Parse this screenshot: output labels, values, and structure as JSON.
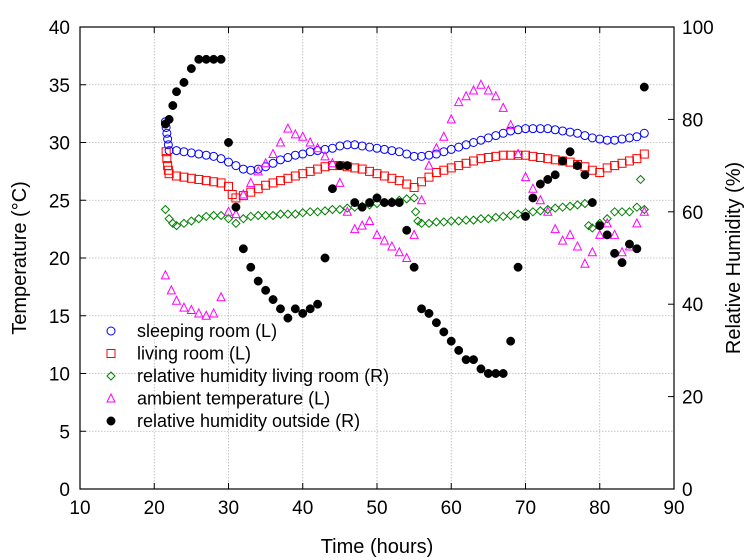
{
  "chart_data": {
    "type": "scatter",
    "xlabel": "Time (hours)",
    "ylabel_left": "Temperature (°C)",
    "ylabel_right": "Relative Humidity (%)",
    "xlim": [
      10,
      90
    ],
    "ylim_left": [
      0,
      40
    ],
    "ylim_right": [
      0,
      100
    ],
    "xticks": [
      10,
      20,
      30,
      40,
      50,
      60,
      70,
      80,
      90
    ],
    "yticks_left": [
      0,
      5,
      10,
      15,
      20,
      25,
      30,
      35,
      40
    ],
    "yticks_right": [
      0,
      20,
      40,
      60,
      80,
      100
    ],
    "grid": true,
    "legend_position": "bottom-left",
    "series": [
      {
        "name": "sleeping room (L)",
        "axis": "left",
        "marker": "circle-open",
        "color": "#0000ff",
        "x": [
          21.5,
          21.6,
          21.7,
          21.8,
          21.9,
          22,
          23,
          24,
          25,
          26,
          27,
          28,
          29,
          30,
          31,
          32,
          33,
          34,
          35,
          36,
          37,
          38,
          39,
          40,
          41,
          42,
          43,
          44,
          45,
          46,
          47,
          48,
          49,
          50,
          51,
          52,
          53,
          54,
          55,
          56,
          57,
          58,
          59,
          60,
          61,
          62,
          63,
          64,
          65,
          66,
          67,
          68,
          69,
          70,
          71,
          72,
          73,
          74,
          75,
          76,
          77,
          78,
          79,
          80,
          81,
          82,
          83,
          84,
          85,
          86
        ],
        "y": [
          31.8,
          31.3,
          30.8,
          30.3,
          29.8,
          29.3,
          29.3,
          29.2,
          29.1,
          29.0,
          28.9,
          28.8,
          28.6,
          28.3,
          28.0,
          27.7,
          27.6,
          27.7,
          27.9,
          28.2,
          28.5,
          28.7,
          28.9,
          29.0,
          29.2,
          29.3,
          29.4,
          29.5,
          29.7,
          29.8,
          29.8,
          29.7,
          29.6,
          29.5,
          29.4,
          29.3,
          29.2,
          29.0,
          28.8,
          28.8,
          28.9,
          29.0,
          29.2,
          29.4,
          29.6,
          29.8,
          30.0,
          30.2,
          30.4,
          30.6,
          30.8,
          31.0,
          31.1,
          31.2,
          31.2,
          31.2,
          31.2,
          31.1,
          31.0,
          30.9,
          30.8,
          30.6,
          30.4,
          30.3,
          30.2,
          30.2,
          30.3,
          30.4,
          30.5,
          30.8
        ]
      },
      {
        "name": "living room (L)",
        "axis": "left",
        "marker": "square-open",
        "color": "#ff0000",
        "x": [
          21.6,
          21.7,
          21.8,
          21.9,
          22,
          23,
          24,
          25,
          26,
          27,
          28,
          29,
          30,
          30.5,
          31,
          32,
          33,
          34,
          35,
          36,
          37,
          38,
          39,
          40,
          41,
          42,
          43,
          44,
          45,
          46,
          47,
          48,
          49,
          50,
          51,
          52,
          53,
          54,
          55,
          56,
          57,
          58,
          59,
          60,
          61,
          62,
          63,
          64,
          65,
          66,
          67,
          68,
          69,
          70,
          71,
          72,
          73,
          74,
          75,
          76,
          77,
          78,
          79,
          80,
          81,
          82,
          83,
          84,
          85,
          86
        ],
        "y": [
          29.2,
          28.6,
          28.0,
          27.6,
          27.3,
          27.1,
          27.0,
          26.9,
          26.8,
          26.7,
          26.6,
          26.5,
          26.2,
          25.5,
          25.2,
          25.4,
          25.7,
          26.0,
          26.3,
          26.5,
          26.7,
          26.9,
          27.1,
          27.3,
          27.5,
          27.7,
          27.9,
          28.0,
          28.0,
          27.9,
          27.8,
          27.7,
          27.5,
          27.3,
          27.1,
          26.9,
          26.7,
          26.4,
          26.1,
          26.6,
          27.0,
          27.4,
          27.6,
          27.8,
          28.0,
          28.2,
          28.4,
          28.6,
          28.7,
          28.8,
          28.9,
          28.9,
          28.9,
          28.9,
          28.8,
          28.7,
          28.6,
          28.5,
          28.4,
          28.3,
          28.1,
          27.9,
          27.6,
          27.4,
          27.8,
          28.0,
          28.2,
          28.4,
          28.6,
          29.0
        ]
      },
      {
        "name": "relative humidity living room (R)",
        "axis": "right",
        "marker": "diamond-open",
        "color": "#008000",
        "x": [
          21.5,
          22,
          22.5,
          23,
          24,
          25,
          26,
          27,
          28,
          29,
          30,
          31,
          32,
          33,
          34,
          35,
          36,
          37,
          38,
          39,
          40,
          41,
          42,
          43,
          44,
          45,
          46,
          47,
          48,
          49,
          50,
          51,
          52,
          53,
          54,
          55,
          55.2,
          55.5,
          56,
          57,
          58,
          59,
          60,
          61,
          62,
          63,
          64,
          65,
          66,
          67,
          68,
          69,
          70,
          71,
          72,
          73,
          74,
          75,
          76,
          77,
          78,
          78.5,
          79,
          80,
          81,
          82,
          83,
          84,
          85,
          85.5,
          86
        ],
        "y": [
          60.5,
          58.5,
          57.5,
          57,
          57.5,
          58,
          58.5,
          59,
          59.2,
          59.2,
          58.5,
          57.5,
          58.5,
          59,
          59.2,
          59.2,
          59.2,
          59.5,
          59.5,
          59.5,
          59.8,
          60,
          60,
          60.2,
          60.5,
          60.5,
          60.8,
          61,
          61.2,
          61.5,
          61.8,
          62,
          62.2,
          62.5,
          62.8,
          63,
          60,
          58,
          57.5,
          57.5,
          57.8,
          57.8,
          58,
          58,
          58.2,
          58.2,
          58.5,
          58.5,
          58.8,
          59,
          59.2,
          59.5,
          59.8,
          60,
          60.2,
          60.5,
          60.8,
          61,
          61.2,
          61.5,
          61.8,
          57,
          56.5,
          57.5,
          58.5,
          60,
          60,
          60,
          61,
          67,
          60.5
        ]
      },
      {
        "name": "ambient temperature (L)",
        "axis": "left",
        "marker": "triangle-open",
        "color": "#ff00ff",
        "x": [
          21.5,
          22.3,
          23,
          24,
          25,
          26,
          27,
          28,
          29,
          30,
          31,
          32,
          33,
          34,
          35,
          36,
          37,
          38,
          39,
          40,
          41,
          42,
          43,
          44,
          45,
          46,
          47,
          48,
          49,
          50,
          51,
          52,
          53,
          54,
          55,
          56,
          57,
          58,
          59,
          60,
          61,
          62,
          63,
          64,
          65,
          66,
          67,
          68,
          69,
          70,
          71,
          72,
          73,
          74,
          75,
          76,
          77,
          78,
          79,
          80,
          81,
          82,
          83,
          84,
          85,
          86
        ],
        "y": [
          18.5,
          17.2,
          16.3,
          15.7,
          15.5,
          15.2,
          15.0,
          15.2,
          16.6,
          24.0,
          23.8,
          25.5,
          26.5,
          27.5,
          28.2,
          29.0,
          30.0,
          31.2,
          30.7,
          30.5,
          30.0,
          29.5,
          28.8,
          28.2,
          26.5,
          24.0,
          22.5,
          22.8,
          23.2,
          22.0,
          21.5,
          21.0,
          20.5,
          20.0,
          22.0,
          25.0,
          28.0,
          29.5,
          30.5,
          32.0,
          33.5,
          34.0,
          34.5,
          35.0,
          34.5,
          34.0,
          33.0,
          31.5,
          29.0,
          27.0,
          26.0,
          25.0,
          24.0,
          22.5,
          21.5,
          22.0,
          21.0,
          19.5,
          20.5,
          22.0,
          23.0,
          22.0,
          20.5,
          21.0,
          23.0,
          24.0
        ]
      },
      {
        "name": "relative humidity outside (R)",
        "axis": "right",
        "marker": "circle-filled",
        "color": "#000000",
        "x": [
          21.5,
          22,
          22.5,
          23,
          24,
          25,
          26,
          27,
          28,
          29,
          30,
          31,
          32,
          33,
          34,
          35,
          36,
          37,
          38,
          39,
          40,
          41,
          42,
          43,
          44,
          45,
          46,
          47,
          48,
          49,
          50,
          51,
          52,
          53,
          54,
          55,
          56,
          57,
          58,
          59,
          60,
          61,
          62,
          63,
          64,
          65,
          66,
          67,
          68,
          69,
          70,
          71,
          72,
          73,
          74,
          75,
          76,
          77,
          78,
          79,
          80,
          81,
          82,
          83,
          84,
          85,
          86
        ],
        "y": [
          79,
          80,
          83,
          86,
          88,
          91,
          93,
          93,
          93,
          93,
          75,
          61,
          52,
          48,
          45,
          43,
          41,
          39,
          37,
          39,
          38,
          39,
          40,
          50,
          65,
          70,
          70,
          62,
          61,
          62,
          63,
          62,
          62,
          62,
          56,
          48,
          39,
          38,
          36,
          34,
          32,
          30,
          28,
          28,
          26,
          25,
          25,
          25,
          32,
          48,
          59,
          63,
          66,
          67,
          68,
          71,
          73,
          70,
          68,
          62,
          57,
          55,
          51,
          49,
          53,
          52,
          87
        ]
      }
    ]
  }
}
